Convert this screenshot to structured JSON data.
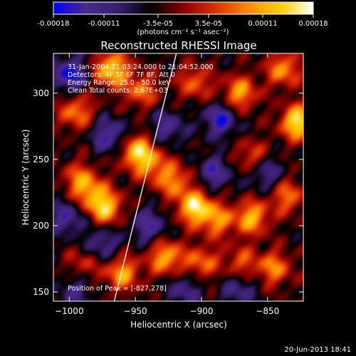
{
  "colorbar": {
    "ticks": [
      "-0.00018",
      "-0.00011",
      "-3.5e-05",
      "3.5e-05",
      "0.00011",
      "0.00018"
    ],
    "tick_values": [
      -0.00018,
      -0.00011,
      -3.5e-05,
      3.5e-05,
      0.00011,
      0.00018
    ],
    "unit_label": "(photons cm⁻² s⁻¹ asec⁻²)",
    "colors": [
      "#0000ff",
      "#4b2a8c",
      "#3a1d6e",
      "#000000",
      "#8b0000",
      "#e03000",
      "#ff8c00",
      "#ffd000",
      "#ffffff"
    ]
  },
  "plot": {
    "title": "Reconstructed RHESSI Image",
    "annotations": {
      "time_range": "31-Jan-2004 21:03:24.000 to 21:04:52.000",
      "detectors": "Detectors: 4F 5F 6F 7F 8F, Att 0",
      "energy_range": "Energy Range: 25.0 - 50.0 keV",
      "clean_counts": "Clean    Total counts: 2.67E+03",
      "peak": "Position of Peak = [-827,278]"
    },
    "xlabel": "Heliocentric X (arcsec)",
    "ylabel": "Heliocentric Y (arcsec)",
    "xticks": [
      "−1000",
      "−950",
      "−900",
      "−850"
    ],
    "yticks": [
      "150",
      "200",
      "250",
      "300"
    ]
  },
  "footer": {
    "timestamp": "20-Jun-2013 18:41"
  },
  "chart_data": {
    "type": "heatmap",
    "title": "Reconstructed RHESSI Image",
    "xlabel": "Heliocentric X (arcsec)",
    "ylabel": "Heliocentric Y (arcsec)",
    "xlim": [
      -1012,
      -823
    ],
    "ylim": [
      143,
      330
    ],
    "x_ticks": [
      -1000,
      -950,
      -900,
      -850
    ],
    "y_ticks": [
      150,
      200,
      250,
      300
    ],
    "color_range": [
      -0.00018,
      0.00018
    ],
    "limb_line": {
      "x": [
        -966,
        -919
      ],
      "y": [
        143,
        330
      ]
    },
    "peak_position": [
      -827,
      278
    ],
    "hotspots": [
      {
        "x": -968,
        "y": 318,
        "amp": 0.9
      },
      {
        "x": -995,
        "y": 286,
        "amp": 0.6
      },
      {
        "x": -946,
        "y": 302,
        "amp": 0.55
      },
      {
        "x": -905,
        "y": 308,
        "amp": 0.5
      },
      {
        "x": -871,
        "y": 300,
        "amp": 0.7
      },
      {
        "x": -838,
        "y": 318,
        "amp": 0.65
      },
      {
        "x": -827,
        "y": 278,
        "amp": 1.0
      },
      {
        "x": -949,
        "y": 256,
        "amp": 0.8
      },
      {
        "x": -938,
        "y": 246,
        "amp": 0.5
      },
      {
        "x": -993,
        "y": 236,
        "amp": 0.45
      },
      {
        "x": -973,
        "y": 214,
        "amp": 0.85
      },
      {
        "x": -985,
        "y": 226,
        "amp": 0.5
      },
      {
        "x": -921,
        "y": 234,
        "amp": 0.6
      },
      {
        "x": -905,
        "y": 214,
        "amp": 0.95
      },
      {
        "x": -888,
        "y": 204,
        "amp": 0.6
      },
      {
        "x": -862,
        "y": 206,
        "amp": 0.75
      },
      {
        "x": -835,
        "y": 222,
        "amp": 0.55
      },
      {
        "x": -927,
        "y": 176,
        "amp": 0.75
      },
      {
        "x": -960,
        "y": 164,
        "amp": 0.7
      },
      {
        "x": -900,
        "y": 172,
        "amp": 0.55
      },
      {
        "x": -870,
        "y": 172,
        "amp": 0.45
      },
      {
        "x": -845,
        "y": 168,
        "amp": 0.6
      },
      {
        "x": -989,
        "y": 172,
        "amp": 0.35
      },
      {
        "x": -862,
        "y": 252,
        "amp": 0.45
      },
      {
        "x": -970,
        "y": 268,
        "amp": -0.55
      },
      {
        "x": -1000,
        "y": 314,
        "amp": -0.7
      },
      {
        "x": -886,
        "y": 280,
        "amp": -0.6
      },
      {
        "x": -926,
        "y": 274,
        "amp": -0.45
      },
      {
        "x": -913,
        "y": 152,
        "amp": -0.4
      },
      {
        "x": -1002,
        "y": 206,
        "amp": -0.5
      },
      {
        "x": -976,
        "y": 186,
        "amp": -0.45
      },
      {
        "x": -852,
        "y": 240,
        "amp": -0.45
      },
      {
        "x": -872,
        "y": 152,
        "amp": -0.4
      },
      {
        "x": -940,
        "y": 200,
        "amp": -0.5
      },
      {
        "x": -890,
        "y": 240,
        "amp": -0.5
      },
      {
        "x": -996,
        "y": 150,
        "amp": -0.35
      }
    ]
  }
}
